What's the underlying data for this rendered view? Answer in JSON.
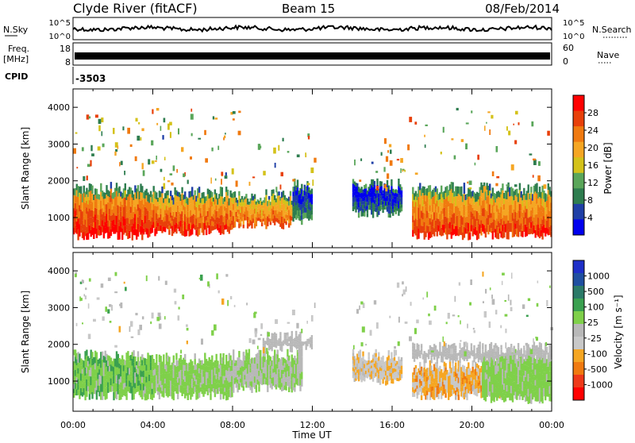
{
  "header": {
    "station": "Clyde River (fitACF)",
    "beam": "Beam 15",
    "date": "08/Feb/2014"
  },
  "top_panels": {
    "nsky_label": "N.Sky",
    "nsky_tick_hi": "10^5",
    "nsky_tick_lo": "10^0",
    "nsearch_label": "N.Search",
    "nsearch_tick_hi": "10^5",
    "nsearch_tick_lo": "10^0",
    "freq_label": "Freq.",
    "freq_unit": "[MHz]",
    "freq_tick_hi": "18",
    "freq_tick_lo": "8",
    "nave_label": "Nave",
    "nave_tick_hi": "60",
    "nave_tick_lo": "0",
    "cpid_label": "CPID",
    "cpid_value": "-3503"
  },
  "colors": {
    "power_scale": [
      "#0000ee",
      "#1f3fa6",
      "#2e7d4f",
      "#5aa65a",
      "#d4c21a",
      "#f5a623",
      "#f07a10",
      "#e8400a",
      "#ff0000"
    ],
    "velocity_scale": [
      "#ff0000",
      "#ee3a1a",
      "#f07a10",
      "#f5a623",
      "#c8c8c8",
      "#b8b8b8",
      "#7fd04a",
      "#3aa050",
      "#2b7a68",
      "#1f4fa0",
      "#1e2fc8"
    ],
    "ground_scatter": "#999999"
  },
  "chart_data": [
    {
      "type": "heatmap",
      "title": "",
      "ylabel": "Slant Range [km]",
      "xlabel": "Time UT",
      "ylim": [
        180,
        4500
      ],
      "xlim": [
        0,
        24
      ],
      "y_ticks": [
        "1000",
        "2000",
        "3000",
        "4000"
      ],
      "x_ticks": [
        "00:00",
        "04:00",
        "08:00",
        "12:00",
        "16:00",
        "20:00",
        "00:00"
      ],
      "colorbar_label": "Power [dB]",
      "colorbar_ticks": [
        "4",
        "8",
        "12",
        "16",
        "20",
        "24",
        "28"
      ],
      "colorbar_range": [
        0,
        30
      ],
      "description_bands": [
        {
          "t0": 0.0,
          "t1": 4.0,
          "r0": 500,
          "r1": 1800,
          "value": 28
        },
        {
          "t0": 4.0,
          "t1": 8.0,
          "r0": 600,
          "r1": 1700,
          "value": 26
        },
        {
          "t0": 8.0,
          "t1": 11.0,
          "r0": 800,
          "r1": 1600,
          "value": 24
        },
        {
          "t0": 11.0,
          "t1": 12.0,
          "r0": 900,
          "r1": 1900,
          "value": 10
        },
        {
          "t0": 14.0,
          "t1": 16.5,
          "r0": 1100,
          "r1": 1900,
          "value": 8
        },
        {
          "t0": 17.0,
          "t1": 24.0,
          "r0": 500,
          "r1": 1800,
          "value": 26
        }
      ]
    },
    {
      "type": "heatmap",
      "title": "",
      "ylabel": "Slant Range [km]",
      "xlabel": "Time UT",
      "ylim": [
        180,
        4500
      ],
      "xlim": [
        0,
        24
      ],
      "y_ticks": [
        "1000",
        "2000",
        "3000",
        "4000"
      ],
      "x_ticks": [
        "00:00",
        "04:00",
        "08:00",
        "12:00",
        "16:00",
        "20:00",
        "00:00"
      ],
      "colorbar_label": "Velocity [m s⁻¹]",
      "colorbar_ticks": [
        "1000",
        "500",
        "100",
        "25",
        "-25",
        "-100",
        "-500",
        "-1000"
      ],
      "colorbar_range": [
        -1000,
        1000
      ],
      "description_bands": [
        {
          "t0": 0.0,
          "t1": 4.0,
          "r0": 600,
          "r1": 1700,
          "value": 200
        },
        {
          "t0": 4.0,
          "t1": 8.0,
          "r0": 600,
          "r1": 1600,
          "value": 150
        },
        {
          "t0": 8.0,
          "t1": 11.5,
          "r0": 800,
          "r1": 1700,
          "value": 80
        },
        {
          "t0": 9.5,
          "t1": 12.0,
          "r0": 1900,
          "r1": 2200,
          "value": 0
        },
        {
          "t0": 14.0,
          "t1": 16.5,
          "r0": 1000,
          "r1": 1700,
          "value": -200
        },
        {
          "t0": 17.0,
          "t1": 21.5,
          "r0": 600,
          "r1": 1400,
          "value": -300
        },
        {
          "t0": 20.5,
          "t1": 24.0,
          "r0": 500,
          "r1": 1700,
          "value": 150
        },
        {
          "t0": 17.0,
          "t1": 24.0,
          "r0": 1600,
          "r1": 1900,
          "value": 0
        }
      ]
    }
  ]
}
